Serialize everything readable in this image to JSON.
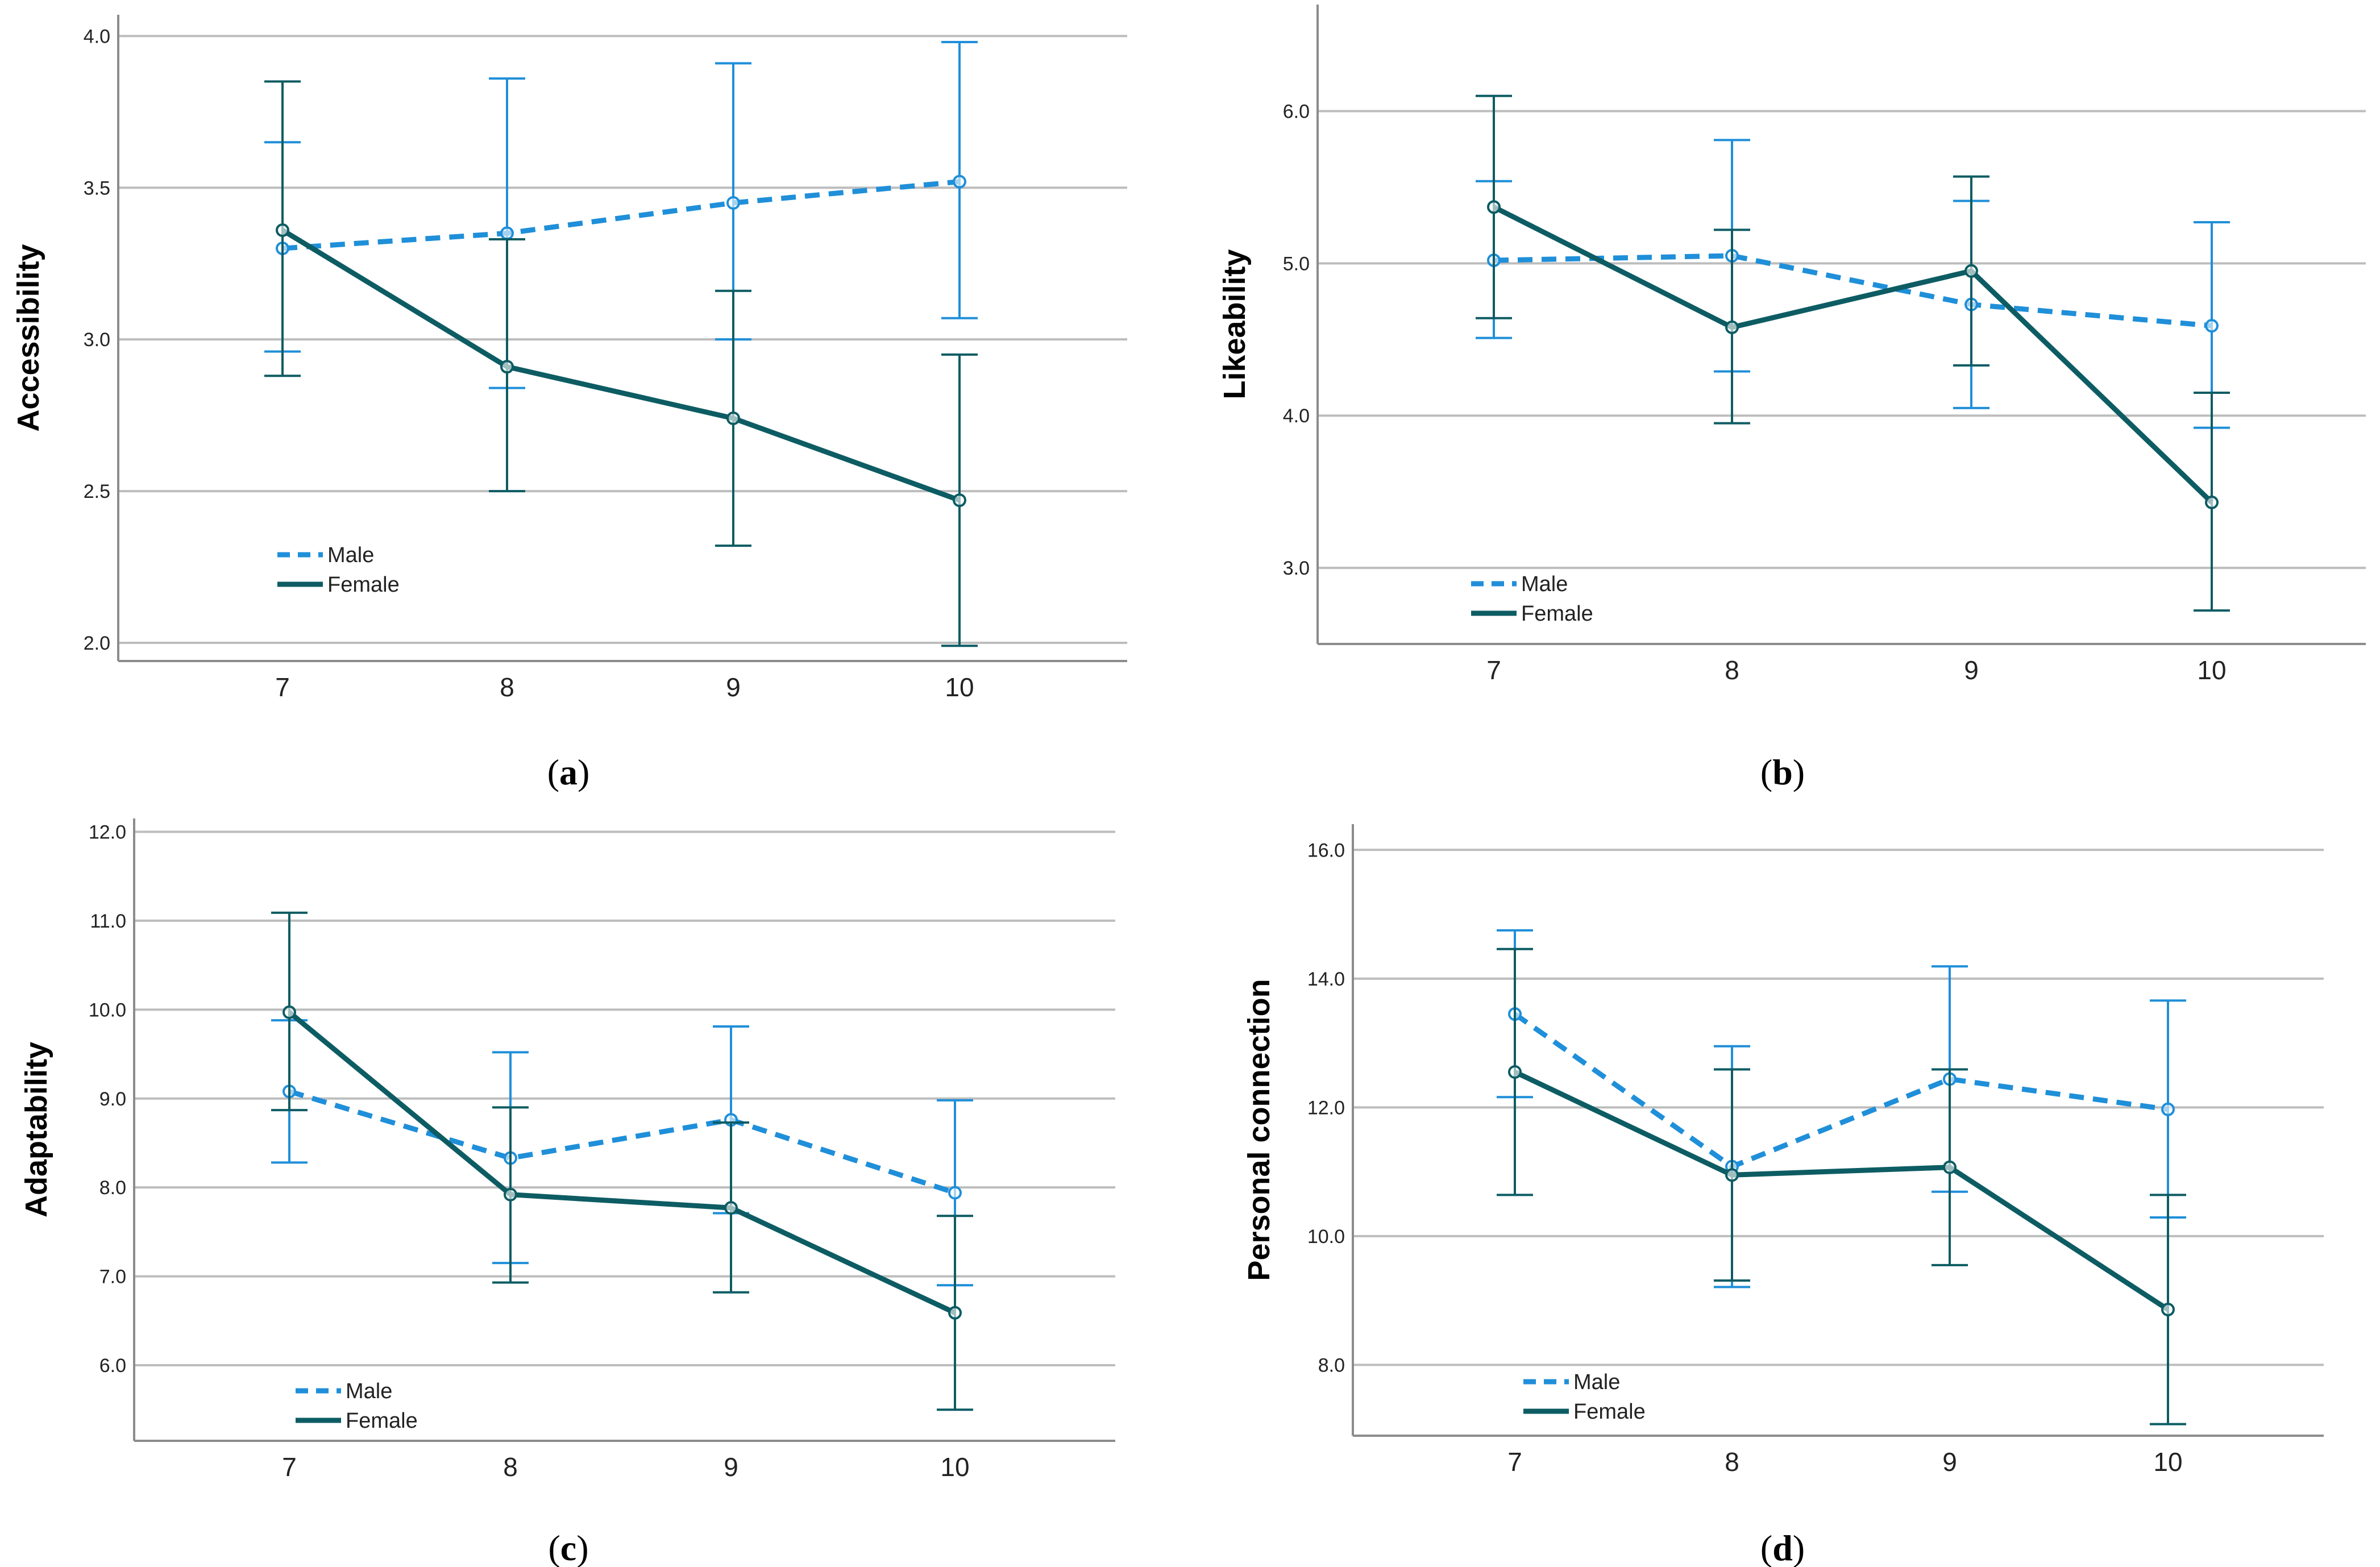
{
  "chart_data": [
    {
      "type": "line",
      "panel_label": "a",
      "title": "",
      "xlabel": "",
      "ylabel": "Accessibility",
      "categories": [
        "7",
        "8",
        "9",
        "10"
      ],
      "ylim": [
        1.94,
        4.07
      ],
      "yticks": [
        "2.0",
        "2.5",
        "3.0",
        "3.5",
        "4.0"
      ],
      "grid": true,
      "legend": {
        "position": "bottom-left",
        "entries": [
          "Male",
          "Female"
        ]
      },
      "series": [
        {
          "name": "Male",
          "color": "#1f8fd9",
          "dash": true,
          "values": [
            3.3,
            3.35,
            3.45,
            3.52
          ],
          "ci_low": [
            2.96,
            2.84,
            3.0,
            3.07
          ],
          "ci_high": [
            3.65,
            3.86,
            3.91,
            3.98
          ]
        },
        {
          "name": "Female",
          "color": "#0d5c63",
          "dash": false,
          "values": [
            3.36,
            2.91,
            2.74,
            2.47
          ],
          "ci_low": [
            2.88,
            2.5,
            2.32,
            1.99
          ],
          "ci_high": [
            3.85,
            3.33,
            3.16,
            2.95
          ]
        }
      ]
    },
    {
      "type": "line",
      "panel_label": "b",
      "title": "",
      "xlabel": "",
      "ylabel": "Likeability",
      "categories": [
        "7",
        "8",
        "9",
        "10"
      ],
      "ylim": [
        2.5,
        6.7
      ],
      "yticks": [
        "3.0",
        "4.0",
        "5.0",
        "6.0"
      ],
      "grid": true,
      "legend": {
        "position": "bottom-left",
        "entries": [
          "Male",
          "Female"
        ]
      },
      "series": [
        {
          "name": "Male",
          "color": "#1f8fd9",
          "dash": true,
          "values": [
            5.02,
            5.05,
            4.73,
            4.59
          ],
          "ci_low": [
            4.51,
            4.29,
            4.05,
            3.92
          ],
          "ci_high": [
            5.54,
            5.81,
            5.41,
            5.27
          ]
        },
        {
          "name": "Female",
          "color": "#0d5c63",
          "dash": false,
          "values": [
            5.37,
            4.58,
            4.95,
            3.43
          ],
          "ci_low": [
            4.64,
            3.95,
            4.33,
            2.72
          ],
          "ci_high": [
            6.1,
            5.22,
            5.57,
            4.15
          ]
        }
      ]
    },
    {
      "type": "line",
      "panel_label": "c",
      "title": "",
      "xlabel": "",
      "ylabel": "Adaptability",
      "categories": [
        "7",
        "8",
        "9",
        "10"
      ],
      "ylim": [
        5.15,
        12.15
      ],
      "yticks": [
        "6.0",
        "7.0",
        "8.0",
        "9.0",
        "10.0",
        "11.0",
        "12.0"
      ],
      "grid": true,
      "legend": {
        "position": "bottom-left",
        "entries": [
          "Male",
          "Female"
        ]
      },
      "series": [
        {
          "name": "Male",
          "color": "#1f8fd9",
          "dash": true,
          "values": [
            9.08,
            8.33,
            8.76,
            7.94
          ],
          "ci_low": [
            8.28,
            7.15,
            7.71,
            6.9
          ],
          "ci_high": [
            9.88,
            9.52,
            9.81,
            8.98
          ]
        },
        {
          "name": "Female",
          "color": "#0d5c63",
          "dash": false,
          "values": [
            9.97,
            7.92,
            7.77,
            6.59
          ],
          "ci_low": [
            8.87,
            6.93,
            6.82,
            5.5
          ],
          "ci_high": [
            11.09,
            8.9,
            8.73,
            7.68
          ]
        }
      ]
    },
    {
      "type": "line",
      "panel_label": "d",
      "title": "",
      "xlabel": "",
      "ylabel": "Personal connection",
      "categories": [
        "7",
        "8",
        "9",
        "10"
      ],
      "ylim": [
        6.9,
        16.4
      ],
      "yticks": [
        "8.0",
        "10.0",
        "12.0",
        "14.0",
        "16.0"
      ],
      "grid": true,
      "legend": {
        "position": "bottom-left",
        "entries": [
          "Male",
          "Female"
        ]
      },
      "series": [
        {
          "name": "Male",
          "color": "#1f8fd9",
          "dash": true,
          "values": [
            13.45,
            11.08,
            12.44,
            11.97
          ],
          "ci_low": [
            12.16,
            9.21,
            10.69,
            10.29
          ],
          "ci_high": [
            14.75,
            12.95,
            14.19,
            13.66
          ]
        },
        {
          "name": "Female",
          "color": "#0d5c63",
          "dash": false,
          "values": [
            12.55,
            10.95,
            11.07,
            8.86
          ],
          "ci_low": [
            10.64,
            9.31,
            9.55,
            7.08
          ],
          "ci_high": [
            14.46,
            12.59,
            12.59,
            10.64
          ]
        }
      ]
    }
  ]
}
